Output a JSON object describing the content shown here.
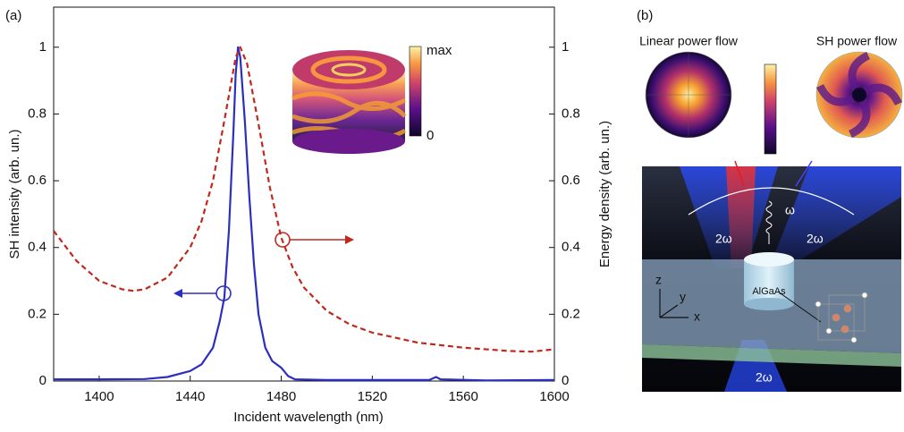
{
  "panel_labels": [
    "(a)",
    "(b)"
  ],
  "chart_data": {
    "type": "line",
    "xlabel": "Incident wavelength (nm)",
    "ylabel": "SH intensity (arb. un.)",
    "y2label": "Energy density (arb. un.)",
    "xlim": [
      1380,
      1600
    ],
    "xticks": [
      1400,
      1440,
      1480,
      1520,
      1560,
      1600
    ],
    "ylim": [
      0,
      1.12
    ],
    "yticks": [
      0,
      0.2,
      0.4,
      0.6,
      0.8,
      1
    ],
    "y2lim": [
      0,
      1.12
    ],
    "y2ticks": [
      0,
      0.2,
      0.4,
      0.6,
      0.8,
      1
    ],
    "inset_colorbar": [
      "max",
      "0"
    ],
    "series": [
      {
        "color": "#2b2fbf",
        "dash": "solid",
        "axis": "y",
        "x": [
          1380,
          1400,
          1420,
          1430,
          1440,
          1445,
          1450,
          1453,
          1455,
          1457,
          1459,
          1460,
          1461,
          1462,
          1464,
          1466,
          1468,
          1470,
          1473,
          1476,
          1480,
          1483,
          1486,
          1500,
          1520,
          1545,
          1548,
          1550,
          1570,
          1600
        ],
        "values": [
          0.005,
          0.005,
          0.006,
          0.012,
          0.03,
          0.05,
          0.1,
          0.18,
          0.25,
          0.45,
          0.75,
          0.92,
          1.0,
          0.97,
          0.78,
          0.55,
          0.35,
          0.2,
          0.1,
          0.06,
          0.04,
          0.015,
          0.005,
          0.003,
          0.003,
          0.003,
          0.012,
          0.005,
          0.002,
          0.003
        ]
      },
      {
        "color": "#c0281c",
        "dash": "dashed",
        "axis": "y2",
        "x": [
          1380,
          1390,
          1400,
          1410,
          1415,
          1420,
          1430,
          1440,
          1445,
          1450,
          1455,
          1460,
          1462,
          1465,
          1470,
          1475,
          1480,
          1485,
          1490,
          1500,
          1510,
          1520,
          1540,
          1560,
          1580,
          1590,
          1600
        ],
        "values": [
          0.45,
          0.36,
          0.3,
          0.275,
          0.27,
          0.275,
          0.31,
          0.4,
          0.48,
          0.6,
          0.78,
          0.97,
          1.0,
          0.95,
          0.77,
          0.58,
          0.43,
          0.34,
          0.28,
          0.21,
          0.17,
          0.145,
          0.115,
          0.1,
          0.09,
          0.088,
          0.095
        ]
      }
    ]
  },
  "panel_b": {
    "titles": [
      "Linear power flow",
      "SH power flow"
    ],
    "beam_labels": [
      "2ω",
      "ω",
      "2ω",
      "2ω"
    ],
    "material": "AlGaAs",
    "axes": [
      "z",
      "y",
      "x"
    ]
  }
}
